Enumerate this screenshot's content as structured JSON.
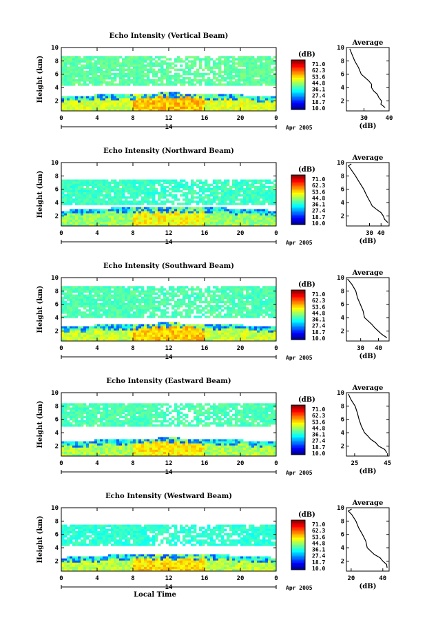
{
  "chart_data": [
    {
      "type": "heatmap",
      "title": "Echo Intensity (Vertical Beam)",
      "ylabel": "Height (km)",
      "xlabel": "",
      "xlim": [
        0,
        24
      ],
      "ylim": [
        0.5,
        10
      ],
      "x_ticks": [
        "0",
        "4",
        "8",
        "12",
        "16",
        "20",
        "0"
      ],
      "y_ticks": [
        "10",
        "8",
        "6",
        "4",
        "2"
      ],
      "date_label": "14",
      "month_year": "Apr 2005",
      "colorbar": {
        "label": "(dB)",
        "ticks": [
          "71.0",
          "62.3",
          "53.6",
          "44.8",
          "36.1",
          "27.4",
          "18.7",
          "10.0"
        ]
      },
      "layers": {
        "upper_top": 8.7,
        "upper_bottom": 4.2,
        "upper_level": 38,
        "boundary_top": 2.6,
        "boundary_level": 46
      },
      "average": {
        "title": "Average",
        "xlabel": "(dB)",
        "xlim": [
          23,
          40
        ],
        "x_ticks": [
          "30",
          "40"
        ],
        "y_ticks": [
          "10",
          "8",
          "6",
          "4",
          "2"
        ],
        "profile": [
          [
            9.8,
            24
          ],
          [
            9,
            25
          ],
          [
            8,
            26
          ],
          [
            7,
            27.5
          ],
          [
            6,
            29
          ],
          [
            5,
            32
          ],
          [
            4.5,
            33
          ],
          [
            4,
            33
          ],
          [
            3.5,
            34
          ],
          [
            3,
            35
          ],
          [
            2.5,
            36
          ],
          [
            2,
            37
          ],
          [
            1.5,
            37
          ],
          [
            1,
            38
          ]
        ]
      }
    },
    {
      "type": "heatmap",
      "title": "Echo Intensity (Northward Beam)",
      "ylabel": "Height (km)",
      "xlabel": "",
      "xlim": [
        0,
        24
      ],
      "ylim": [
        0.5,
        10
      ],
      "x_ticks": [
        "0",
        "4",
        "8",
        "12",
        "16",
        "20",
        "0"
      ],
      "y_ticks": [
        "10",
        "8",
        "6",
        "4",
        "2"
      ],
      "date_label": "14",
      "month_year": "Apr 2005",
      "colorbar": {
        "label": "(dB)",
        "ticks": [
          "71.0",
          "62.3",
          "53.6",
          "44.8",
          "36.1",
          "27.4",
          "18.7",
          "10.0"
        ]
      },
      "layers": {
        "upper_top": 7.4,
        "upper_bottom": 3.8,
        "upper_level": 36,
        "boundary_top": 2.8,
        "boundary_level": 42
      },
      "average": {
        "title": "Average",
        "xlabel": "(dB)",
        "xlim": [
          10,
          47
        ],
        "x_ticks": [
          "30",
          "40"
        ],
        "y_ticks": [
          "10",
          "8",
          "6",
          "4",
          "2"
        ],
        "profile": [
          [
            9.8,
            14
          ],
          [
            9.5,
            12
          ],
          [
            9,
            14
          ],
          [
            8,
            18
          ],
          [
            7,
            21
          ],
          [
            6,
            25
          ],
          [
            5,
            28
          ],
          [
            4,
            31
          ],
          [
            3.5,
            32
          ],
          [
            3,
            36
          ],
          [
            2.5,
            40
          ],
          [
            2,
            42
          ],
          [
            1.5,
            43
          ],
          [
            1,
            46
          ]
        ]
      }
    },
    {
      "type": "heatmap",
      "title": "Echo Intensity (Southward Beam)",
      "ylabel": "Height (km)",
      "xlabel": "",
      "xlim": [
        0,
        24
      ],
      "ylim": [
        0.5,
        10
      ],
      "x_ticks": [
        "0",
        "4",
        "8",
        "12",
        "16",
        "20",
        "0"
      ],
      "y_ticks": [
        "10",
        "8",
        "6",
        "4",
        "2"
      ],
      "date_label": "14",
      "month_year": "Apr 2005",
      "colorbar": {
        "label": "(dB)",
        "ticks": [
          "71.0",
          "62.3",
          "53.6",
          "44.8",
          "36.1",
          "27.4",
          "18.7",
          "10.0"
        ]
      },
      "layers": {
        "upper_top": 8.8,
        "upper_bottom": 4.0,
        "upper_level": 37,
        "boundary_top": 2.6,
        "boundary_level": 45
      },
      "average": {
        "title": "Average",
        "xlabel": "(dB)",
        "xlim": [
          22,
          46
        ],
        "x_ticks": [
          "30",
          "40"
        ],
        "y_ticks": [
          "10",
          "8",
          "6",
          "4",
          "2"
        ],
        "profile": [
          [
            9.8,
            23
          ],
          [
            9,
            25
          ],
          [
            8,
            27
          ],
          [
            7,
            28.5
          ],
          [
            6,
            30
          ],
          [
            5,
            31.5
          ],
          [
            4,
            32
          ],
          [
            3.5,
            34
          ],
          [
            3,
            36
          ],
          [
            2.5,
            38
          ],
          [
            2,
            40
          ],
          [
            1.5,
            42
          ],
          [
            1,
            45
          ]
        ]
      }
    },
    {
      "type": "heatmap",
      "title": "Echo Intensity (Eastward Beam)",
      "ylabel": "Height (km)",
      "xlabel": "",
      "xlim": [
        0,
        24
      ],
      "ylim": [
        0.5,
        10
      ],
      "x_ticks": [
        "0",
        "4",
        "8",
        "12",
        "16",
        "20",
        "0"
      ],
      "y_ticks": [
        "10",
        "8",
        "6",
        "4",
        "2"
      ],
      "date_label": "14",
      "month_year": "Apr 2005",
      "colorbar": {
        "label": "(dB)",
        "ticks": [
          "71.0",
          "62.3",
          "53.6",
          "44.8",
          "36.1",
          "27.4",
          "18.7",
          "10.0"
        ]
      },
      "layers": {
        "upper_top": 8.5,
        "upper_bottom": 4.8,
        "upper_level": 37,
        "boundary_top": 2.6,
        "boundary_level": 43
      },
      "average": {
        "title": "Average",
        "xlabel": "(dB)",
        "xlim": [
          20,
          46
        ],
        "x_ticks": [
          "25",
          "45"
        ],
        "y_ticks": [
          "10",
          "8",
          "6",
          "4",
          "2"
        ],
        "profile": [
          [
            9.8,
            21
          ],
          [
            9,
            23
          ],
          [
            8,
            25
          ],
          [
            7,
            26.5
          ],
          [
            6,
            28
          ],
          [
            5,
            29
          ],
          [
            4,
            31
          ],
          [
            3.5,
            33
          ],
          [
            3,
            35
          ],
          [
            2.5,
            38
          ],
          [
            2,
            40
          ],
          [
            1.5,
            43
          ],
          [
            1,
            45
          ]
        ]
      }
    },
    {
      "type": "heatmap",
      "title": "Echo Intensity (Westward Beam)",
      "ylabel": "Height (km)",
      "xlabel": "Local Time",
      "xlim": [
        0,
        24
      ],
      "ylim": [
        0.5,
        10
      ],
      "x_ticks": [
        "0",
        "4",
        "8",
        "12",
        "16",
        "20",
        "0"
      ],
      "y_ticks": [
        "10",
        "8",
        "6",
        "4",
        "2"
      ],
      "date_label": "14",
      "month_year": "Apr 2005",
      "colorbar": {
        "label": "(dB)",
        "ticks": [
          "71.0",
          "62.3",
          "53.6",
          "44.8",
          "36.1",
          "27.4",
          "18.7",
          "10.0"
        ]
      },
      "layers": {
        "upper_top": 7.5,
        "upper_bottom": 4.2,
        "upper_level": 35,
        "boundary_top": 2.5,
        "boundary_level": 44
      },
      "average": {
        "title": "Average",
        "xlabel": "(dB)",
        "xlim": [
          17,
          44
        ],
        "x_ticks": [
          "20",
          "40"
        ],
        "y_ticks": [
          "10",
          "8",
          "6",
          "4",
          "2"
        ],
        "profile": [
          [
            9.8,
            20
          ],
          [
            9.5,
            18
          ],
          [
            9,
            20
          ],
          [
            8,
            23
          ],
          [
            7,
            25
          ],
          [
            6,
            27
          ],
          [
            5,
            29
          ],
          [
            4,
            30
          ],
          [
            3.5,
            32
          ],
          [
            3,
            35
          ],
          [
            2.5,
            38
          ],
          [
            2,
            40
          ],
          [
            1.5,
            42
          ],
          [
            1,
            43
          ]
        ]
      }
    }
  ]
}
